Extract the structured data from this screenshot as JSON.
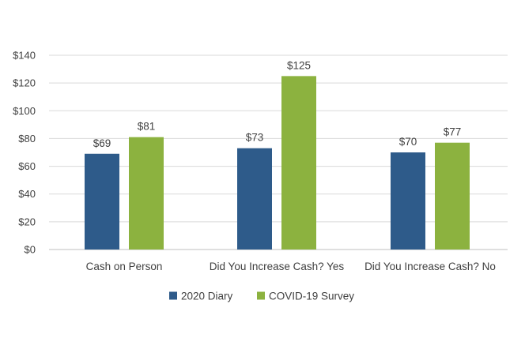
{
  "chart_data": {
    "type": "bar",
    "title": "",
    "xlabel": "",
    "ylabel": "",
    "ylim": [
      0,
      140
    ],
    "y_step": 20,
    "y_prefix": "$",
    "grid": true,
    "legend_position": "bottom",
    "categories": [
      "Cash on Person",
      "Did You Increase Cash? Yes",
      "Did You Increase Cash? No"
    ],
    "series": [
      {
        "name": "2020 Diary",
        "color": "#2e5b8a",
        "values": [
          69,
          73,
          70
        ],
        "labels": [
          "$69",
          "$73",
          "$70"
        ]
      },
      {
        "name": "COVID-19 Survey",
        "color": "#8cb23f",
        "values": [
          81,
          125,
          77
        ],
        "labels": [
          "$81",
          "$125",
          "$77"
        ]
      }
    ]
  }
}
